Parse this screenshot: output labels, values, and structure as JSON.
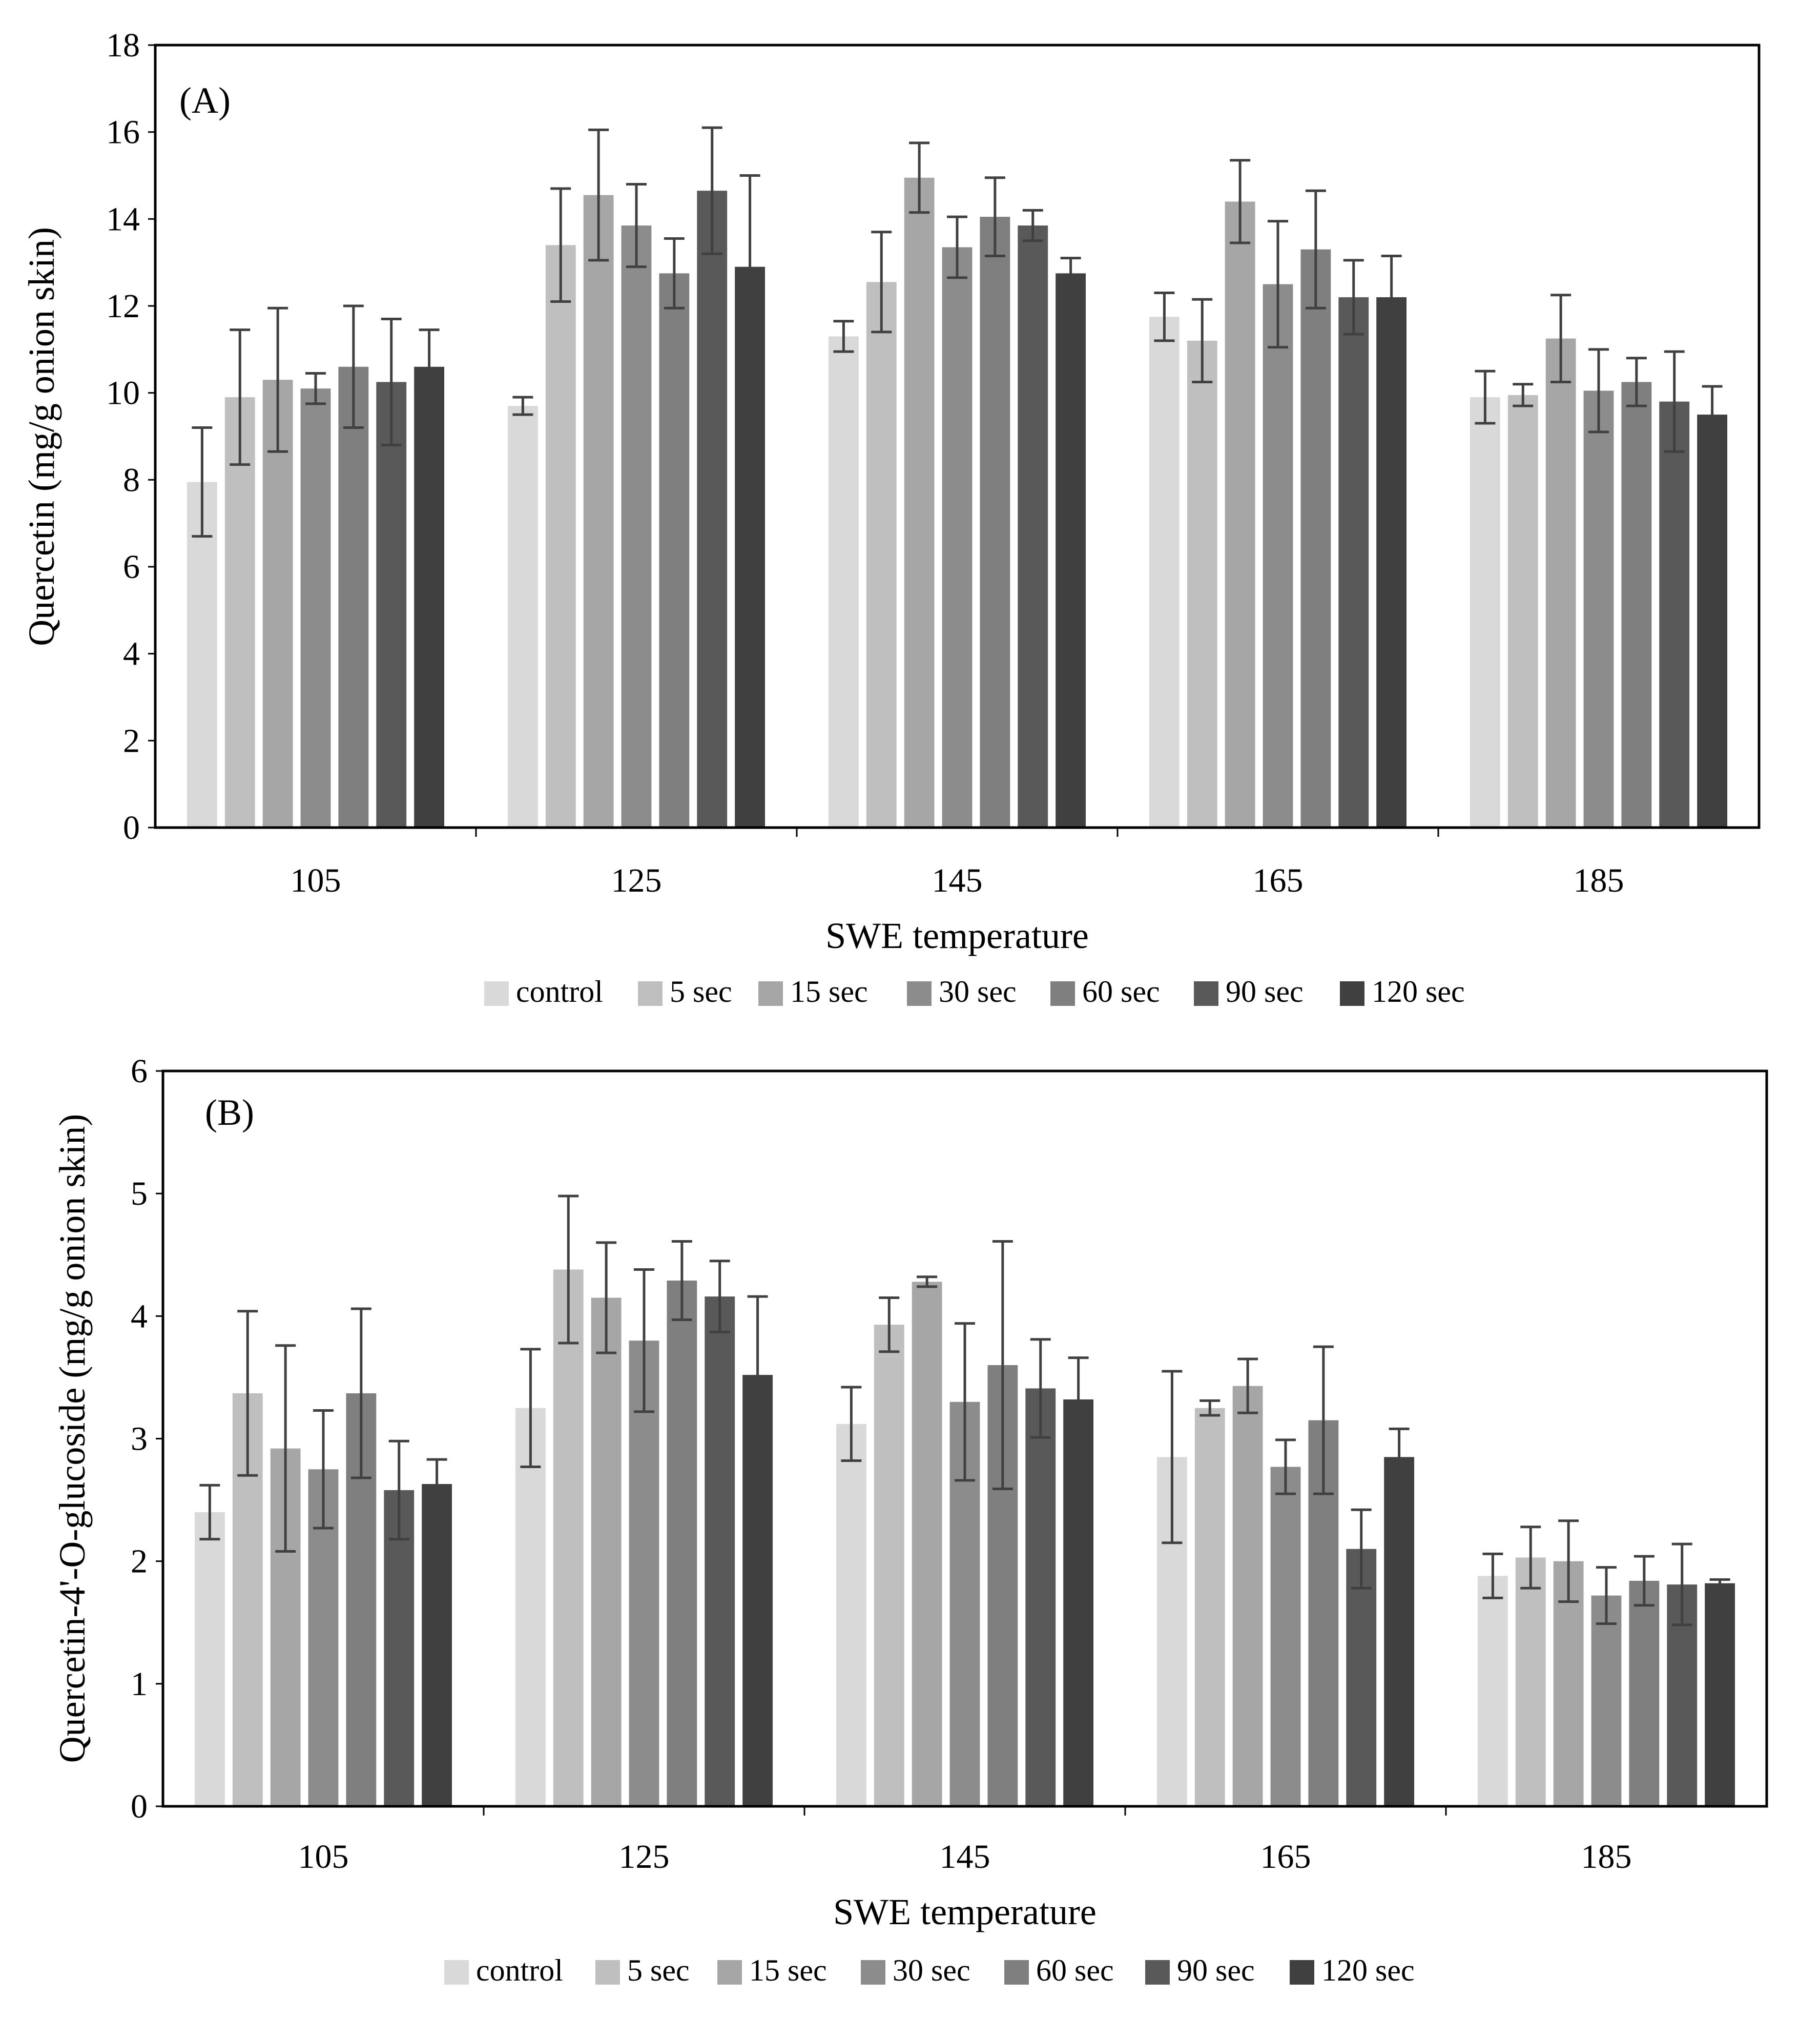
{
  "chart_data": [
    {
      "type": "bar",
      "panel_label": "(A)",
      "categories": [
        "105",
        "125",
        "145",
        "165",
        "185"
      ],
      "xlabel": "SWE temperature",
      "ylabel": "Quercetin (mg/g onion skin)",
      "ylim": [
        0,
        18
      ],
      "yticks": [
        "0",
        "2",
        "4",
        "6",
        "8",
        "10",
        "12",
        "14",
        "16",
        "18"
      ],
      "legend_position": "bottom-center",
      "series": [
        {
          "name": "control",
          "color": "#d9d9d9",
          "values": [
            7.95,
            9.7,
            11.3,
            11.75,
            9.9
          ],
          "errors": [
            1.25,
            0.2,
            0.35,
            0.55,
            0.6
          ]
        },
        {
          "name": "5 sec",
          "color": "#bfbfbf",
          "values": [
            9.9,
            13.4,
            12.55,
            11.2,
            9.95
          ],
          "errors": [
            1.55,
            1.3,
            1.15,
            0.95,
            0.25
          ]
        },
        {
          "name": "15 sec",
          "color": "#a6a6a6",
          "values": [
            10.3,
            14.55,
            14.95,
            14.4,
            11.25
          ],
          "errors": [
            1.65,
            1.5,
            0.8,
            0.95,
            1.0
          ]
        },
        {
          "name": "30 sec",
          "color": "#8c8c8c",
          "values": [
            10.1,
            13.85,
            13.35,
            12.5,
            10.05
          ],
          "errors": [
            0.35,
            0.95,
            0.7,
            1.45,
            0.95
          ]
        },
        {
          "name": "60 sec",
          "color": "#7f7f7f",
          "values": [
            10.6,
            12.75,
            14.05,
            13.3,
            10.25
          ],
          "errors": [
            1.4,
            0.8,
            0.9,
            1.35,
            0.55
          ]
        },
        {
          "name": "90 sec",
          "color": "#595959",
          "values": [
            10.25,
            14.65,
            13.85,
            12.2,
            9.8
          ],
          "errors": [
            1.45,
            1.45,
            0.35,
            0.85,
            1.15
          ]
        },
        {
          "name": "120 sec",
          "color": "#404040",
          "values": [
            10.6,
            12.9,
            12.75,
            12.2,
            9.5
          ],
          "errors": [
            0.85,
            2.1,
            0.35,
            0.95,
            0.65
          ]
        }
      ]
    },
    {
      "type": "bar",
      "panel_label": "(B)",
      "categories": [
        "105",
        "125",
        "145",
        "165",
        "185"
      ],
      "xlabel": "SWE temperature",
      "ylabel": "Quercetin-4'-O-glucoside (mg/g onion skin)",
      "ylim": [
        0,
        6
      ],
      "yticks": [
        "0",
        "1",
        "2",
        "3",
        "4",
        "5",
        "6"
      ],
      "legend_position": "bottom-center",
      "series": [
        {
          "name": "control",
          "color": "#d9d9d9",
          "values": [
            2.4,
            3.25,
            3.12,
            2.85,
            1.88
          ],
          "errors": [
            0.22,
            0.48,
            0.3,
            0.7,
            0.18
          ]
        },
        {
          "name": "5 sec",
          "color": "#bfbfbf",
          "values": [
            3.37,
            4.38,
            3.93,
            3.25,
            2.03
          ],
          "errors": [
            0.67,
            0.6,
            0.22,
            0.06,
            0.25
          ]
        },
        {
          "name": "15 sec",
          "color": "#a6a6a6",
          "values": [
            2.92,
            4.15,
            4.28,
            3.43,
            2.0
          ],
          "errors": [
            0.84,
            0.45,
            0.04,
            0.22,
            0.33
          ]
        },
        {
          "name": "30 sec",
          "color": "#8c8c8c",
          "values": [
            2.75,
            3.8,
            3.3,
            2.77,
            1.72
          ],
          "errors": [
            0.48,
            0.58,
            0.64,
            0.22,
            0.23
          ]
        },
        {
          "name": "60 sec",
          "color": "#7f7f7f",
          "values": [
            3.37,
            4.29,
            3.6,
            3.15,
            1.84
          ],
          "errors": [
            0.69,
            0.32,
            1.01,
            0.6,
            0.2
          ]
        },
        {
          "name": "90 sec",
          "color": "#595959",
          "values": [
            2.58,
            4.16,
            3.41,
            2.1,
            1.81
          ],
          "errors": [
            0.4,
            0.29,
            0.4,
            0.32,
            0.33
          ]
        },
        {
          "name": "120 sec",
          "color": "#404040",
          "values": [
            2.63,
            3.52,
            3.32,
            2.85,
            1.82
          ],
          "errors": [
            0.2,
            0.64,
            0.34,
            0.23,
            0.03
          ]
        }
      ]
    }
  ]
}
